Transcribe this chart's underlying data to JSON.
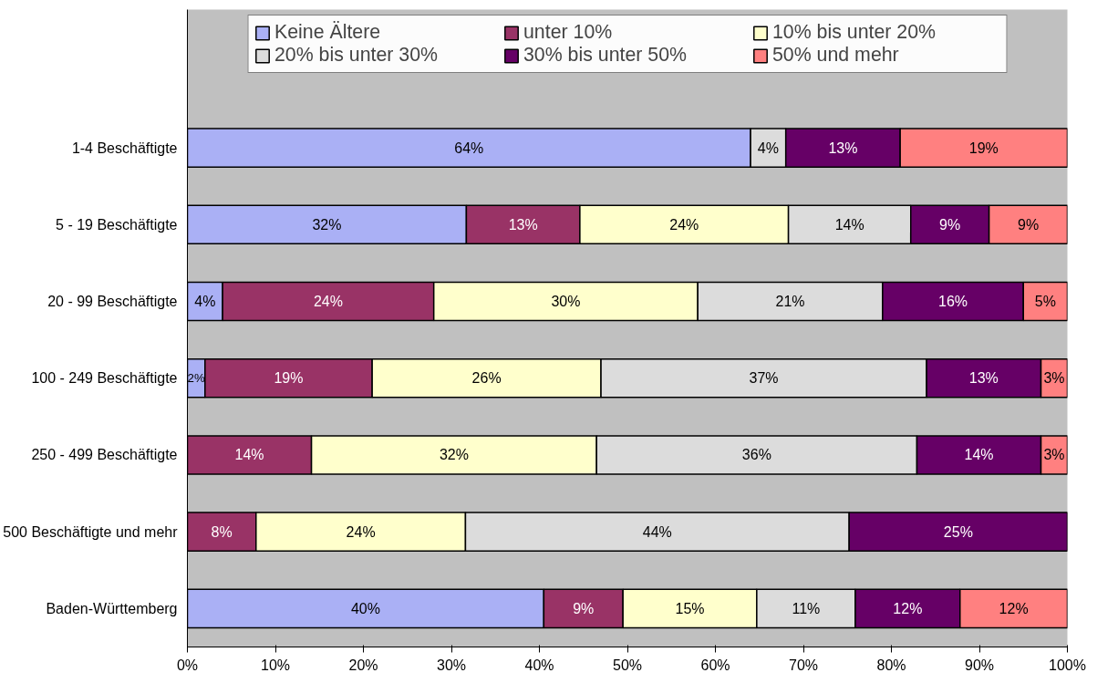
{
  "chart_data": {
    "type": "bar",
    "orientation": "horizontal",
    "stacked": true,
    "categories": [
      "1-4 Beschäftigte",
      "5 - 19 Beschäftigte",
      "20 - 99 Beschäftigte",
      "100 - 249 Beschäftigte",
      "250 - 499 Beschäftigte",
      "500 Beschäftigte und mehr",
      "Baden-Württemberg"
    ],
    "series": [
      {
        "name": "Keine Ältere",
        "color": "#aab0f5",
        "values": [
          64,
          31.7,
          4,
          2,
          null,
          null,
          40.5
        ],
        "value_labels": [
          "64%",
          "32%",
          "4%",
          "2%",
          null,
          null,
          "40%"
        ]
      },
      {
        "name": "unter 10%",
        "color": "#993366",
        "values": [
          null,
          12.9,
          24,
          19,
          14.1,
          7.8,
          9.0
        ],
        "value_labels": [
          null,
          "13%",
          "24%",
          "19%",
          "14%",
          "8%",
          "9%"
        ]
      },
      {
        "name": "10% bis unter 20%",
        "color": "#ffffcc",
        "values": [
          null,
          23.7,
          30,
          26,
          32.4,
          23.8,
          15.2
        ],
        "value_labels": [
          null,
          "24%",
          "30%",
          "26%",
          "32%",
          "24%",
          "15%"
        ]
      },
      {
        "name": "20% bis unter 30%",
        "color": "#dcdcdc",
        "values": [
          4,
          13.9,
          21,
          37,
          36.4,
          43.6,
          11.2
        ],
        "value_labels": [
          "4%",
          "14%",
          "21%",
          "37%",
          "36%",
          "44%",
          "11%"
        ]
      },
      {
        "name": "30% bis unter 50%",
        "color": "#660066",
        "values": [
          13,
          8.9,
          16,
          13,
          14.1,
          24.8,
          11.9
        ],
        "value_labels": [
          "13%",
          "9%",
          "16%",
          "13%",
          "14%",
          "25%",
          "12%"
        ]
      },
      {
        "name": "50% und mehr",
        "color": "#ff8080",
        "values": [
          19,
          8.9,
          5,
          3,
          3.0,
          null,
          12.2
        ],
        "value_labels": [
          "19%",
          "9%",
          "5%",
          "3%",
          "3%",
          null,
          "12%"
        ]
      }
    ],
    "xlim": [
      0,
      100
    ],
    "xticks": [
      {
        "value": 0,
        "label": "0%"
      },
      {
        "value": 10,
        "label": "10%"
      },
      {
        "value": 20,
        "label": "20%"
      },
      {
        "value": 30,
        "label": "30%"
      },
      {
        "value": 40,
        "label": "40%"
      },
      {
        "value": 50,
        "label": "50%"
      },
      {
        "value": 60,
        "label": "60%"
      },
      {
        "value": 70,
        "label": "70%"
      },
      {
        "value": 80,
        "label": "80%"
      },
      {
        "value": 90,
        "label": "90%"
      },
      {
        "value": 100,
        "label": "100%"
      }
    ],
    "legend": "top",
    "grid": false
  }
}
